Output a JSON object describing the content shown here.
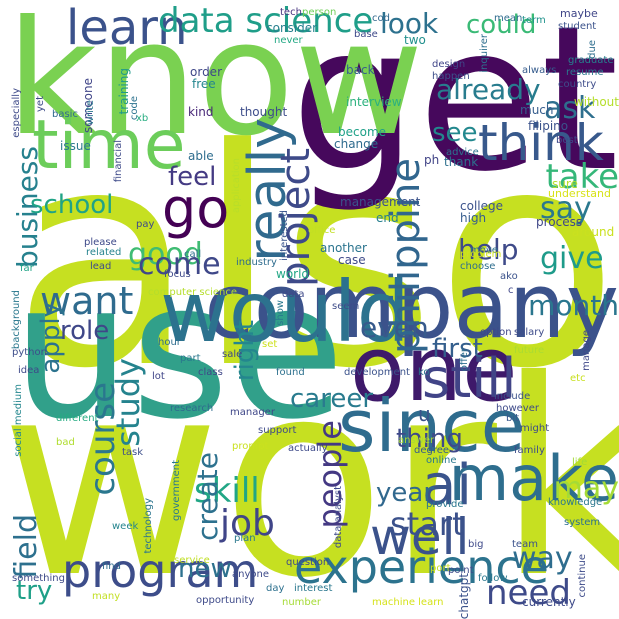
{
  "words": [
    {
      "id": "also",
      "text": "also",
      "color": "#c6e021"
    },
    {
      "id": "work",
      "text": "work",
      "color": "#c6e021"
    },
    {
      "id": "use",
      "text": "use",
      "color": "#31a08a"
    },
    {
      "id": "get",
      "text": "get",
      "color": "#46085c"
    },
    {
      "id": "know",
      "text": "know",
      "color": "#7ad151"
    },
    {
      "id": "company",
      "text": "company",
      "color": "#3b528b"
    },
    {
      "id": "would",
      "text": "would",
      "color": "#2c728e"
    },
    {
      "id": "one",
      "text": "one",
      "color": "#3e196a"
    },
    {
      "id": "since",
      "text": "since",
      "color": "#2f6c8e"
    },
    {
      "id": "time",
      "text": "time",
      "color": "#6ccd5a"
    },
    {
      "id": "experience",
      "text": "experience",
      "color": "#2c738e"
    },
    {
      "id": "make",
      "text": "make",
      "color": "#2e6e8e"
    },
    {
      "id": "program",
      "text": "program",
      "color": "#3d4d8a"
    },
    {
      "id": "ai",
      "text": "ai",
      "color": "#3a548c"
    },
    {
      "id": "well",
      "text": "well",
      "color": "#3b528b"
    },
    {
      "id": "still",
      "text": "still",
      "color": "#414487"
    },
    {
      "id": "go",
      "text": "go",
      "color": "#440154"
    },
    {
      "id": "think",
      "text": "think",
      "color": "#38598c"
    },
    {
      "id": "really",
      "text": "really",
      "color": "#306a8e"
    },
    {
      "id": "learn",
      "text": "learn",
      "color": "#3b528b"
    },
    {
      "id": "data_science",
      "text": "data science",
      "color": "#1f9e89"
    },
    {
      "id": "want",
      "text": "want",
      "color": "#2f6b8e"
    },
    {
      "id": "project",
      "text": "project",
      "color": "#3e4a89"
    },
    {
      "id": "philippine",
      "text": "philippine",
      "color": "#31668e"
    },
    {
      "id": "course",
      "text": "course",
      "color": "#2a778e"
    },
    {
      "id": "people",
      "text": "people",
      "color": "#443983"
    },
    {
      "id": "job",
      "text": "job",
      "color": "#404588"
    },
    {
      "id": "skill",
      "text": "skill",
      "color": "#21a685"
    },
    {
      "id": "create",
      "text": "create",
      "color": "#2d718e"
    },
    {
      "id": "study",
      "text": "study",
      "color": "#25838e"
    },
    {
      "id": "start",
      "text": "start",
      "color": "#3b518b"
    },
    {
      "id": "need",
      "text": "need",
      "color": "#3e4a89"
    },
    {
      "id": "business",
      "text": "business",
      "color": "#26818e"
    },
    {
      "id": "good",
      "text": "good",
      "color": "#3fbc73"
    },
    {
      "id": "come",
      "text": "come",
      "color": "#3f4889"
    },
    {
      "id": "take",
      "text": "take",
      "color": "#35b779"
    },
    {
      "id": "say",
      "text": "say",
      "color": "#2a788e"
    },
    {
      "id": "give",
      "text": "give",
      "color": "#1e9b8a"
    },
    {
      "id": "see",
      "text": "see",
      "color": "#23888e"
    },
    {
      "id": "look",
      "text": "look",
      "color": "#2d718e"
    },
    {
      "id": "could",
      "text": "could",
      "color": "#3aba76"
    },
    {
      "id": "already",
      "text": "already",
      "color": "#287c8e"
    },
    {
      "id": "ask",
      "text": "ask",
      "color": "#2e6f8e"
    },
    {
      "id": "help",
      "text": "help",
      "color": "#3e4a89"
    },
    {
      "id": "feel",
      "text": "feel",
      "color": "#443a83"
    },
    {
      "id": "school",
      "text": "school",
      "color": "#20a386"
    },
    {
      "id": "month",
      "text": "month",
      "color": "#2a768e"
    },
    {
      "id": "first",
      "text": "first",
      "color": "#355f8d"
    },
    {
      "id": "even",
      "text": "even",
      "color": "#375a8c"
    },
    {
      "id": "career",
      "text": "career",
      "color": "#297b8e"
    },
    {
      "id": "thing",
      "text": "thing",
      "color": "#3e4989"
    },
    {
      "id": "year",
      "text": "year",
      "color": "#31688e"
    },
    {
      "id": "may",
      "text": "may",
      "color": "#a5db36"
    },
    {
      "id": "way",
      "text": "way",
      "color": "#2e6d8e"
    },
    {
      "id": "field",
      "text": "field",
      "color": "#2d708e"
    },
    {
      "id": "apply",
      "text": "apply",
      "color": "#2c738e"
    },
    {
      "id": "role",
      "text": "role",
      "color": "#3f4788"
    },
    {
      "id": "right",
      "text": "right",
      "color": "#24868e"
    },
    {
      "id": "new",
      "text": "new",
      "color": "#2d718e"
    },
    {
      "id": "try",
      "text": "try",
      "color": "#1fa088"
    },
    {
      "id": "u",
      "text": "u",
      "color": "#3b528b"
    },
    {
      "id": "tech",
      "text": "tech",
      "color": "#46337f"
    },
    {
      "id": "person",
      "text": "person",
      "color": "#6ece58"
    },
    {
      "id": "cod",
      "text": "cod",
      "color": "#31688e"
    },
    {
      "id": "consider",
      "text": "consider",
      "color": "#277f8e"
    },
    {
      "id": "never",
      "text": "never",
      "color": "#22a884"
    },
    {
      "id": "base",
      "text": "base",
      "color": "#3e4989"
    },
    {
      "id": "mean",
      "text": "mean",
      "color": "#2f6c8e"
    },
    {
      "id": "term",
      "text": "term",
      "color": "#20928c"
    },
    {
      "id": "maybe",
      "text": "maybe",
      "color": "#404688"
    },
    {
      "id": "student",
      "text": "student",
      "color": "#3b528b"
    },
    {
      "id": "two",
      "text": "two",
      "color": "#21908d"
    },
    {
      "id": "due",
      "text": "due",
      "color": "#2e6e8e"
    },
    {
      "id": "graduate",
      "text": "graduate",
      "color": "#27808e"
    },
    {
      "id": "resume",
      "text": "resume",
      "color": "#2a788e"
    },
    {
      "id": "always",
      "text": "always",
      "color": "#365c8d"
    },
    {
      "id": "country",
      "text": "country",
      "color": "#3e4c8a"
    },
    {
      "id": "design",
      "text": "design",
      "color": "#404588"
    },
    {
      "id": "inquirer",
      "text": "inquirer",
      "color": "#2e6f8e"
    },
    {
      "id": "happen",
      "text": "happen",
      "color": "#3c4f8a"
    },
    {
      "id": "back",
      "text": "back",
      "color": "#355f8d"
    },
    {
      "id": "someone",
      "text": "someone",
      "color": "#404588"
    },
    {
      "id": "training",
      "text": "training",
      "color": "#1f9a8a"
    },
    {
      "id": "order",
      "text": "order",
      "color": "#3f4788"
    },
    {
      "id": "free",
      "text": "free",
      "color": "#24868e"
    },
    {
      "id": "especially",
      "text": "especially",
      "color": "#3e4a89"
    },
    {
      "id": "yet",
      "text": "yet",
      "color": "#3e4c8a"
    },
    {
      "id": "code",
      "text": "code",
      "color": "#2c728e"
    },
    {
      "id": "kind",
      "text": "kind",
      "color": "#482878"
    },
    {
      "id": "interview",
      "text": "interview",
      "color": "#2cb17e"
    },
    {
      "id": "much",
      "text": "much",
      "color": "#365d8d"
    },
    {
      "id": "without",
      "text": "without",
      "color": "#b5de2b"
    },
    {
      "id": "basic",
      "text": "basic",
      "color": "#306a8e"
    },
    {
      "id": "write",
      "text": "write",
      "color": "#2a768e"
    },
    {
      "id": "xb",
      "text": "xb",
      "color": "#27ad81"
    },
    {
      "id": "thought",
      "text": "thought",
      "color": "#3d4d8a"
    },
    {
      "id": "filipino",
      "text": "filipino",
      "color": "#3b528b"
    },
    {
      "id": "advice",
      "text": "advice",
      "color": "#2c738e"
    },
    {
      "id": "become",
      "text": "become",
      "color": "#1fa188"
    },
    {
      "id": "change",
      "text": "change",
      "color": "#2f6b8e"
    },
    {
      "id": "ph",
      "text": "ph",
      "color": "#414487"
    },
    {
      "id": "thank",
      "text": "thank",
      "color": "#2d708e"
    },
    {
      "id": "best",
      "text": "best",
      "color": "#3e4989"
    },
    {
      "id": "issue",
      "text": "issue",
      "color": "#2a788e"
    },
    {
      "id": "financial",
      "text": "financial",
      "color": "#3e4a89"
    },
    {
      "id": "able",
      "text": "able",
      "color": "#2e6d8e"
    },
    {
      "id": "application",
      "text": "application",
      "color": "#b8de29"
    },
    {
      "id": "interested",
      "text": "interested",
      "color": "#3a548c"
    },
    {
      "id": "management",
      "text": "management",
      "color": "#3b528b"
    },
    {
      "id": "sure",
      "text": "sure",
      "color": "#b5de2b"
    },
    {
      "id": "understand",
      "text": "understand",
      "color": "#d8e219"
    },
    {
      "id": "college",
      "text": "college",
      "color": "#3b528b"
    },
    {
      "id": "high",
      "text": "high",
      "color": "#365d8d"
    },
    {
      "id": "end",
      "text": "end",
      "color": "#277f8e"
    },
    {
      "id": "around",
      "text": "around",
      "color": "#cae11f"
    },
    {
      "id": "process",
      "text": "process",
      "color": "#3f4788"
    },
    {
      "id": "pay",
      "text": "pay",
      "color": "#3e4a89"
    },
    {
      "id": "office",
      "text": "office",
      "color": "#c2df23"
    },
    {
      "id": "please",
      "text": "please",
      "color": "#3e4989"
    },
    {
      "id": "call",
      "text": "call",
      "color": "#2e6e8e"
    },
    {
      "id": "related",
      "text": "related",
      "color": "#25838e"
    },
    {
      "id": "lead",
      "text": "lead",
      "color": "#3e4c8a"
    },
    {
      "id": "industry",
      "text": "industry",
      "color": "#2f6c8e"
    },
    {
      "id": "another",
      "text": "another",
      "color": "#2b748e"
    },
    {
      "id": "case",
      "text": "case",
      "color": "#3e4a89"
    },
    {
      "id": "move",
      "text": "move",
      "color": "#2e6f8e"
    },
    {
      "id": "problem",
      "text": "problem",
      "color": "#d2e21b"
    },
    {
      "id": "choose",
      "text": "choose",
      "color": "#2e6e8e"
    },
    {
      "id": "far",
      "text": "far",
      "color": "#20a386"
    },
    {
      "id": "focus",
      "text": "focus",
      "color": "#3e4989"
    },
    {
      "id": "computer_science",
      "text": "computer science",
      "color": "#b5de2b"
    },
    {
      "id": "world",
      "text": "world",
      "color": "#22a785"
    },
    {
      "id": "ako",
      "text": "ako",
      "color": "#3b528b"
    },
    {
      "id": "background",
      "text": "background",
      "color": "#2a788e"
    },
    {
      "id": "show",
      "text": "show",
      "color": "#2a788e"
    },
    {
      "id": "data",
      "text": "data",
      "color": "#3e4989"
    },
    {
      "id": "seem",
      "text": "seem",
      "color": "#3e4c8a"
    },
    {
      "id": "c",
      "text": "c",
      "color": "#3f4788"
    },
    {
      "id": "option",
      "text": "option",
      "color": "#3f4788"
    },
    {
      "id": "salary",
      "text": "salary",
      "color": "#3e4c8a"
    },
    {
      "id": "future",
      "text": "future",
      "color": "#aadc32"
    },
    {
      "id": "manage",
      "text": "manage",
      "color": "#3f4788"
    },
    {
      "id": "hour",
      "text": "hour",
      "color": "#2e6e8e"
    },
    {
      "id": "python",
      "text": "python",
      "color": "#3d4d8a"
    },
    {
      "id": "part",
      "text": "part",
      "color": "#2a788e"
    },
    {
      "id": "sale",
      "text": "sale",
      "color": "#3e4989"
    },
    {
      "id": "set",
      "text": "set",
      "color": "#cde11d"
    },
    {
      "id": "offer",
      "text": "offer",
      "color": "#2d708e"
    },
    {
      "id": "ko",
      "text": "ko",
      "color": "#2c728e"
    },
    {
      "id": "idea",
      "text": "idea",
      "color": "#3e4989"
    },
    {
      "id": "class",
      "text": "class",
      "color": "#3f4788"
    },
    {
      "id": "found",
      "text": "found",
      "color": "#2d718e"
    },
    {
      "id": "development",
      "text": "development",
      "color": "#3b528b"
    },
    {
      "id": "lot",
      "text": "lot",
      "color": "#404588"
    },
    {
      "id": "etc",
      "text": "etc",
      "color": "#c8e020"
    },
    {
      "id": "include",
      "text": "include",
      "color": "#3b528b"
    },
    {
      "id": "however",
      "text": "however",
      "color": "#3e4a89"
    },
    {
      "id": "social_medium",
      "text": "social medium",
      "color": "#24878e"
    },
    {
      "id": "research",
      "text": "research",
      "color": "#2f6b8e"
    },
    {
      "id": "manager",
      "text": "manager",
      "color": "#3f4788"
    },
    {
      "id": "bit",
      "text": "bit",
      "color": "#38588c"
    },
    {
      "id": "might",
      "text": "might",
      "color": "#3e4a89"
    },
    {
      "id": "different",
      "text": "different",
      "color": "#25ab82"
    },
    {
      "id": "support",
      "text": "support",
      "color": "#3e4a89"
    },
    {
      "id": "answer",
      "text": "answer",
      "color": "#a8db34"
    },
    {
      "id": "degree",
      "text": "degree",
      "color": "#375b8d"
    },
    {
      "id": "online",
      "text": "online",
      "color": "#2a788e"
    },
    {
      "id": "family",
      "text": "family",
      "color": "#3d4d8a"
    },
    {
      "id": "bad",
      "text": "bad",
      "color": "#b0dd2f"
    },
    {
      "id": "task",
      "text": "task",
      "color": "#3d4e8a"
    },
    {
      "id": "actually",
      "text": "actually",
      "color": "#3e4a89"
    },
    {
      "id": "life",
      "text": "life",
      "color": "#a2da37"
    },
    {
      "id": "government",
      "text": "government",
      "color": "#2a788e"
    },
    {
      "id": "prompt",
      "text": "prompt",
      "color": "#cae11f"
    },
    {
      "id": "knowledge",
      "text": "knowledge",
      "color": "#2a778e"
    },
    {
      "id": "provide",
      "text": "provide",
      "color": "#2a778e"
    },
    {
      "id": "data_analyst",
      "text": "data analyst",
      "color": "#3e4a89"
    },
    {
      "id": "system",
      "text": "system",
      "color": "#2d708e"
    },
    {
      "id": "technology",
      "text": "technology",
      "color": "#2b748e"
    },
    {
      "id": "week",
      "text": "week",
      "color": "#25858e"
    },
    {
      "id": "plan",
      "text": "plan",
      "color": "#2a788e"
    },
    {
      "id": "continue",
      "text": "continue",
      "color": "#3e4c8a"
    },
    {
      "id": "big",
      "text": "big",
      "color": "#3e4989"
    },
    {
      "id": "team",
      "text": "team",
      "color": "#3b528b"
    },
    {
      "id": "something",
      "text": "something",
      "color": "#3e4a89"
    },
    {
      "id": "service",
      "text": "service",
      "color": "#c0df25"
    },
    {
      "id": "question",
      "text": "question",
      "color": "#3e4989"
    },
    {
      "id": "report",
      "text": "report",
      "color": "#c8e020"
    },
    {
      "id": "point",
      "text": "point",
      "color": "#3e4a89"
    },
    {
      "id": "follow",
      "text": "follow",
      "color": "#2a788e"
    },
    {
      "id": "find",
      "text": "find",
      "color": "#2f6b8e"
    },
    {
      "id": "anyone",
      "text": "anyone",
      "color": "#3e4a89"
    },
    {
      "id": "day",
      "text": "day",
      "color": "#2d708e"
    },
    {
      "id": "interest",
      "text": "interest",
      "color": "#2a778e"
    },
    {
      "id": "many",
      "text": "many",
      "color": "#c2df23"
    },
    {
      "id": "opportunity",
      "text": "opportunity",
      "color": "#3e4a89"
    },
    {
      "id": "number",
      "text": "number",
      "color": "#a5db36"
    },
    {
      "id": "machine_learn",
      "text": "machine learn",
      "color": "#d5e21a"
    },
    {
      "id": "chatgpt",
      "text": "chatgpt",
      "color": "#3b528b"
    },
    {
      "id": "currently",
      "text": "currently",
      "color": "#3e4a89"
    }
  ]
}
